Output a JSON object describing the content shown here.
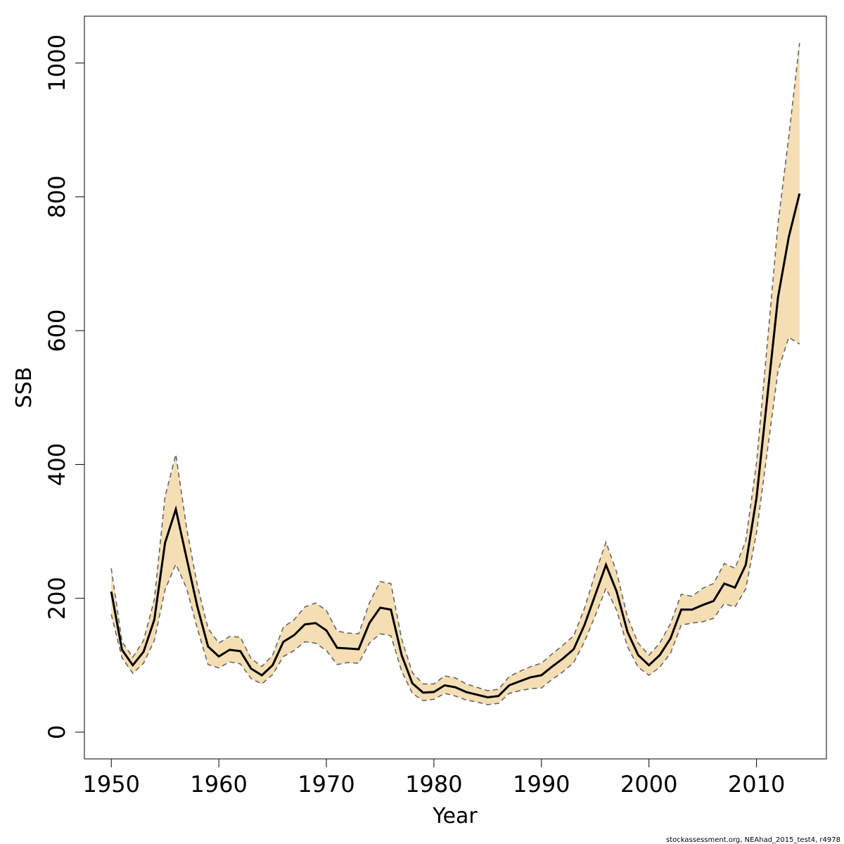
{
  "chart_data": {
    "type": "line",
    "title": "",
    "xlabel": "Year",
    "ylabel": "SSB",
    "xlim": [
      1947.5,
      2016.5
    ],
    "ylim": [
      -40,
      1070
    ],
    "xticks": [
      1950,
      1960,
      1970,
      1980,
      1990,
      2000,
      2010
    ],
    "yticks": [
      0,
      200,
      400,
      600,
      800,
      1000
    ],
    "grid": false,
    "colors": {
      "band": "#F5DEB3",
      "estimate": "#000000",
      "bounds": "#666666"
    },
    "x": [
      1950,
      1951,
      1952,
      1953,
      1954,
      1955,
      1956,
      1957,
      1958,
      1959,
      1960,
      1961,
      1962,
      1963,
      1964,
      1965,
      1966,
      1967,
      1968,
      1969,
      1970,
      1971,
      1972,
      1973,
      1974,
      1975,
      1976,
      1977,
      1978,
      1979,
      1980,
      1981,
      1982,
      1983,
      1984,
      1985,
      1986,
      1987,
      1988,
      1989,
      1990,
      1991,
      1992,
      1993,
      1994,
      1995,
      1996,
      1997,
      1998,
      1999,
      2000,
      2001,
      2002,
      2003,
      2004,
      2005,
      2006,
      2007,
      2008,
      2009,
      2010,
      2011,
      2012,
      2013,
      2014
    ],
    "series": [
      {
        "role": "estimate",
        "values": [
          210,
          123,
          100,
          120,
          168,
          283,
          333,
          260,
          188,
          128,
          113,
          123,
          121,
          95,
          85,
          100,
          135,
          145,
          161,
          163,
          152,
          126,
          125,
          124,
          163,
          186,
          183,
          115,
          73,
          59,
          60,
          70,
          67,
          60,
          56,
          52,
          54,
          70,
          76,
          82,
          85,
          98,
          110,
          124,
          160,
          205,
          250,
          210,
          150,
          115,
          100,
          115,
          140,
          183,
          183,
          190,
          196,
          222,
          216,
          250,
          350,
          500,
          650,
          740,
          805
        ],
        "upper": [
          245,
          135,
          112,
          137,
          198,
          352,
          415,
          305,
          220,
          155,
          133,
          143,
          142,
          110,
          98,
          115,
          157,
          168,
          187,
          193,
          182,
          151,
          148,
          147,
          193,
          225,
          222,
          139,
          89,
          72,
          72,
          84,
          81,
          72,
          67,
          62,
          64,
          83,
          91,
          98,
          103,
          117,
          130,
          144,
          185,
          237,
          284,
          239,
          172,
          133,
          115,
          133,
          162,
          206,
          203,
          215,
          222,
          252,
          245,
          286,
          402,
          580,
          760,
          890,
          1030
        ],
        "lower": [
          176,
          111,
          88,
          103,
          137,
          213,
          251,
          215,
          155,
          101,
          96,
          105,
          102,
          80,
          72,
          86,
          113,
          122,
          135,
          133,
          122,
          101,
          104,
          103,
          133,
          147,
          144,
          91,
          58,
          47,
          49,
          58,
          54,
          48,
          45,
          41,
          43,
          58,
          62,
          65,
          66,
          79,
          90,
          104,
          135,
          174,
          215,
          182,
          128,
          97,
          85,
          97,
          118,
          160,
          163,
          165,
          170,
          192,
          187,
          214,
          298,
          419,
          540,
          590,
          580
        ]
      }
    ]
  },
  "footer_note": "stockassessment.org, NEAhad_2015_test4, r4978"
}
